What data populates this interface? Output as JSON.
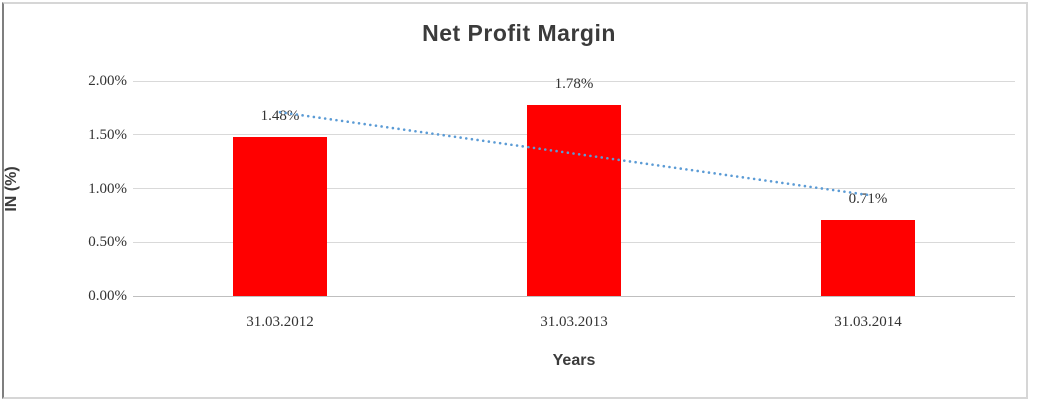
{
  "chart_data": {
    "type": "bar",
    "title": "Net Profit Margin",
    "xlabel": "Years",
    "ylabel": "IN (%)",
    "categories": [
      "31.03.2012",
      "31.03.2013",
      "31.03.2014"
    ],
    "values": [
      1.48,
      1.78,
      0.71
    ],
    "value_labels": [
      "1.48%",
      "1.78%",
      "0.71%"
    ],
    "ylim": [
      0,
      2.0
    ],
    "ytick_step": 0.5,
    "ytick_labels": [
      "0.00%",
      "0.50%",
      "1.00%",
      "1.50%",
      "2.00%"
    ],
    "grid": true,
    "legend": "none",
    "bar_color": "#ff0000",
    "gridline_color": "#d9d9d9",
    "axis_line_color": "#bfbfbf",
    "text_color": "#3b3b3b",
    "trendline": {
      "type": "linear",
      "style": "dotted",
      "color": "#5b9bd5",
      "start_value": 1.71,
      "end_value": 0.94
    }
  }
}
